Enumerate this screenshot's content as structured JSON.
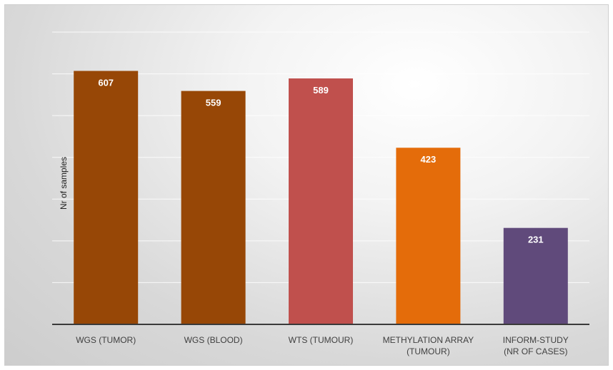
{
  "chart_data": {
    "type": "bar",
    "title": "",
    "xlabel": "",
    "ylabel": "Nr of samples",
    "ylim": [
      0,
      700
    ],
    "grid": true,
    "legend": "none",
    "categories": [
      "WGS (TUMOR)",
      "WGS (BLOOD)",
      "WTS (TUMOUR)",
      "METHYLATION ARRAY (TUMOUR)",
      "INFORM-STUDY (NR OF CASES)"
    ],
    "category_lines": [
      [
        "WGS (TUMOR)"
      ],
      [
        "WGS (BLOOD)"
      ],
      [
        "WTS (TUMOUR)"
      ],
      [
        "METHYLATION ARRAY",
        "(TUMOUR)"
      ],
      [
        "INFORM-STUDY",
        "(NR OF CASES)"
      ]
    ],
    "values": [
      607,
      559,
      589,
      423,
      231
    ],
    "data_labels": [
      "607",
      "559",
      "589",
      "423",
      "231"
    ],
    "colors": [
      "#974706",
      "#974706",
      "#C0504D",
      "#E46C0A",
      "#604A7B"
    ]
  }
}
